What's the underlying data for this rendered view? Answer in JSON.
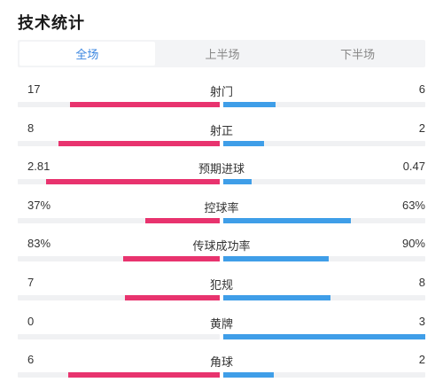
{
  "page": {
    "title": "技术统计"
  },
  "tabs": [
    {
      "label": "全场",
      "active": true
    },
    {
      "label": "上半场",
      "active": false
    },
    {
      "label": "下半场",
      "active": false
    }
  ],
  "colors": {
    "home": "#e8336e",
    "away": "#3f9ee8",
    "active_tab": "#3a86e0",
    "track": "#f0f1f3"
  },
  "stats": [
    {
      "label": "射门",
      "home": "17",
      "away": "6",
      "home_fill": 0.74,
      "away_fill": 0.26
    },
    {
      "label": "射正",
      "home": "8",
      "away": "2",
      "home_fill": 0.8,
      "away_fill": 0.2
    },
    {
      "label": "预期进球",
      "home": "2.81",
      "away": "0.47",
      "home_fill": 0.86,
      "away_fill": 0.14
    },
    {
      "label": "控球率",
      "home": "37%",
      "away": "63%",
      "home_fill": 0.37,
      "away_fill": 0.63
    },
    {
      "label": "传球成功率",
      "home": "83%",
      "away": "90%",
      "home_fill": 0.48,
      "away_fill": 0.52
    },
    {
      "label": "犯规",
      "home": "7",
      "away": "8",
      "home_fill": 0.47,
      "away_fill": 0.53
    },
    {
      "label": "黄牌",
      "home": "0",
      "away": "3",
      "home_fill": 0.0,
      "away_fill": 1.0
    },
    {
      "label": "角球",
      "home": "6",
      "away": "2",
      "home_fill": 0.75,
      "away_fill": 0.25
    }
  ]
}
